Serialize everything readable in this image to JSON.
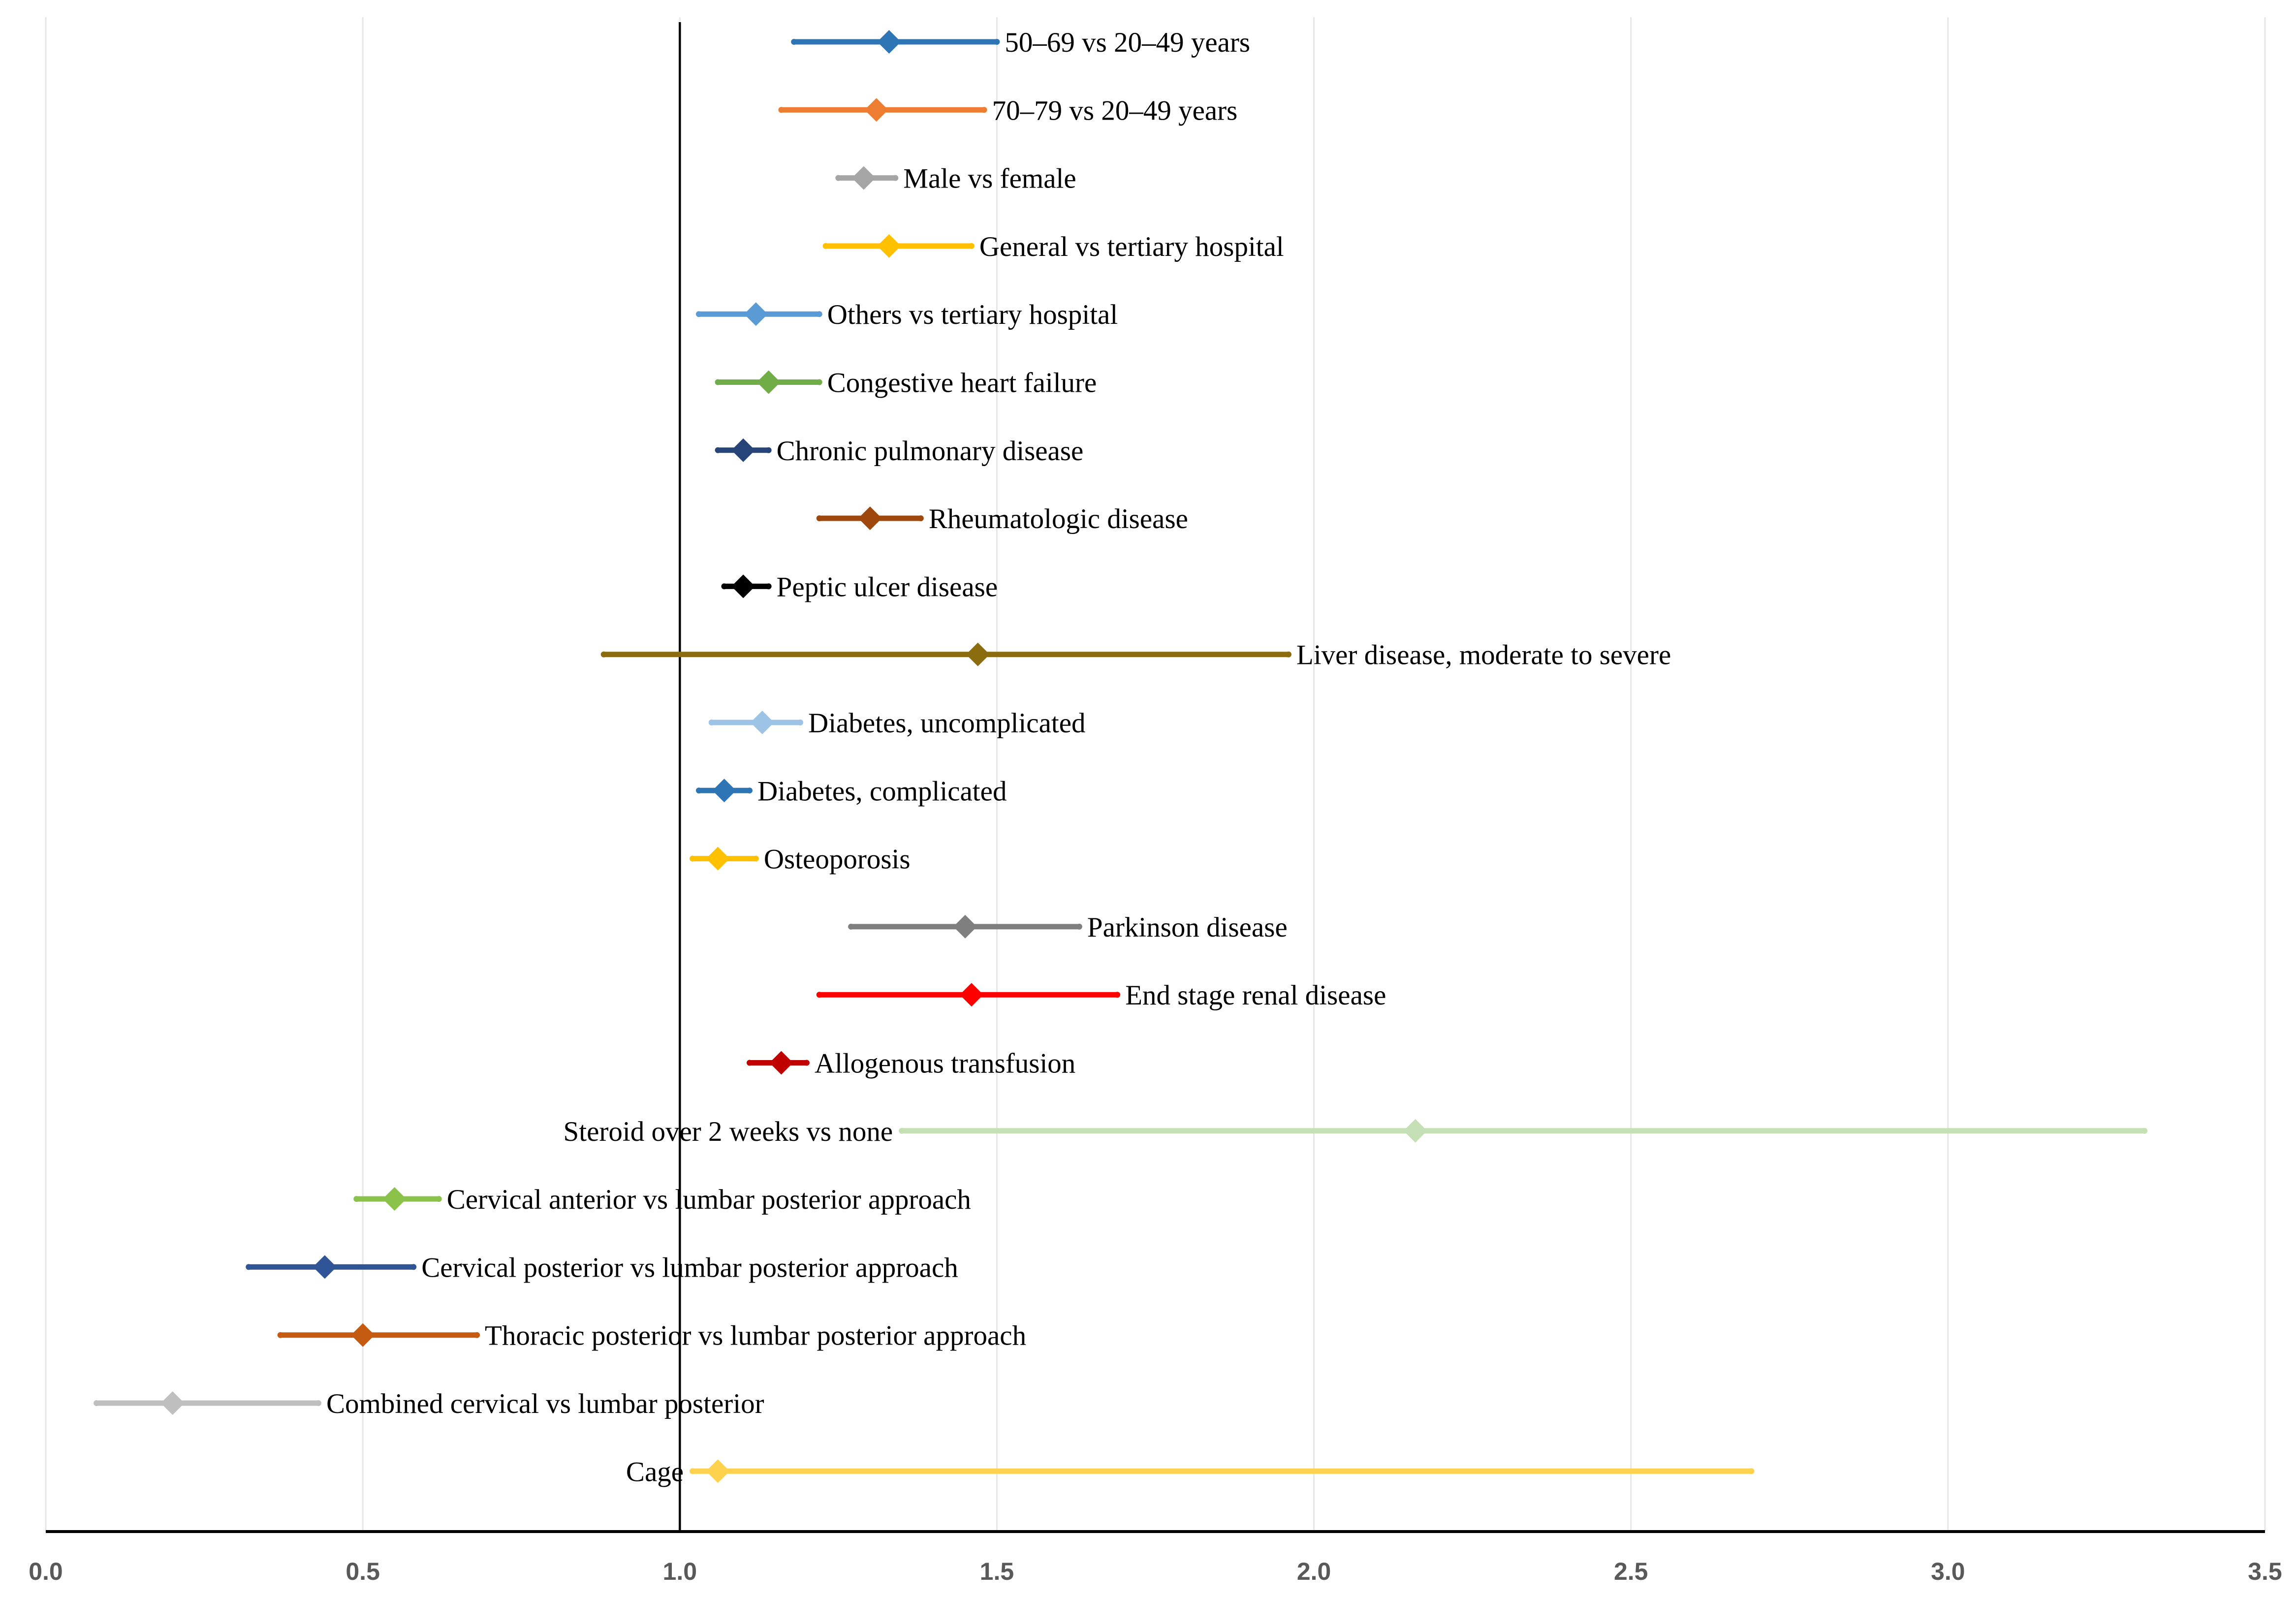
{
  "chart_data": {
    "type": "scatter",
    "title": "",
    "xlabel": "",
    "ylabel": "",
    "xlim": [
      0,
      3.5
    ],
    "x_ticks": [
      "0.0",
      "0.5",
      "1.0",
      "1.5",
      "2.0",
      "2.5",
      "3.0",
      "3.5"
    ],
    "x_tick_values": [
      0,
      0.5,
      1.0,
      1.5,
      2.0,
      2.5,
      3.0,
      3.5
    ],
    "reference_line": 1.0,
    "grid": true,
    "series": [
      {
        "name": "50–69 vs 20–49 years",
        "estimate": 1.33,
        "lower": 1.18,
        "upper": 1.5,
        "color": "#2E75B6",
        "label_side": "right"
      },
      {
        "name": "70–79 vs 20–49 years",
        "estimate": 1.31,
        "lower": 1.16,
        "upper": 1.48,
        "color": "#ED7D31",
        "label_side": "right"
      },
      {
        "name": "Male vs female",
        "estimate": 1.29,
        "lower": 1.25,
        "upper": 1.34,
        "color": "#A5A5A5",
        "label_side": "right"
      },
      {
        "name": "General vs tertiary hospital",
        "estimate": 1.33,
        "lower": 1.23,
        "upper": 1.46,
        "color": "#FFC000",
        "label_side": "right"
      },
      {
        "name": "Others vs tertiary hospital",
        "estimate": 1.12,
        "lower": 1.03,
        "upper": 1.22,
        "color": "#5B9BD5",
        "label_side": "right"
      },
      {
        "name": "Congestive heart failure",
        "estimate": 1.14,
        "lower": 1.06,
        "upper": 1.22,
        "color": "#70AD47",
        "label_side": "right"
      },
      {
        "name": "Chronic pulmonary disease",
        "estimate": 1.1,
        "lower": 1.06,
        "upper": 1.14,
        "color": "#264478",
        "label_side": "right"
      },
      {
        "name": "Rheumatologic disease",
        "estimate": 1.3,
        "lower": 1.22,
        "upper": 1.38,
        "color": "#9E480E",
        "label_side": "right"
      },
      {
        "name": "Peptic ulcer disease",
        "estimate": 1.1,
        "lower": 1.07,
        "upper": 1.14,
        "color": "#000000",
        "label_side": "right"
      },
      {
        "name": "Liver disease,  moderate to severe",
        "estimate": 1.47,
        "lower": 0.88,
        "upper": 1.96,
        "color": "#8B6D0F",
        "label_side": "right"
      },
      {
        "name": "Diabetes, uncomplicated",
        "estimate": 1.13,
        "lower": 1.05,
        "upper": 1.19,
        "color": "#9DC3E6",
        "label_side": "right"
      },
      {
        "name": "Diabetes, complicated",
        "estimate": 1.07,
        "lower": 1.03,
        "upper": 1.11,
        "color": "#2E75B6",
        "label_side": "right"
      },
      {
        "name": "Osteoporosis",
        "estimate": 1.06,
        "lower": 1.02,
        "upper": 1.12,
        "color": "#FFC000",
        "label_side": "right"
      },
      {
        "name": "Parkinson disease",
        "estimate": 1.45,
        "lower": 1.27,
        "upper": 1.63,
        "color": "#7F7F7F",
        "label_side": "right"
      },
      {
        "name": "End stage renal disease",
        "estimate": 1.46,
        "lower": 1.22,
        "upper": 1.69,
        "color": "#FF0000",
        "label_side": "right"
      },
      {
        "name": "Allogenous transfusion",
        "estimate": 1.16,
        "lower": 1.11,
        "upper": 1.2,
        "color": "#C00000",
        "label_side": "right"
      },
      {
        "name": "Steroid over 2 weeks vs none",
        "estimate": 2.16,
        "lower": 1.35,
        "upper": 3.31,
        "color": "#C5E0B4",
        "label_side": "left"
      },
      {
        "name": "Cervical anterior vs lumbar posterior approach",
        "estimate": 0.55,
        "lower": 0.49,
        "upper": 0.62,
        "color": "#8BC34A",
        "label_side": "right"
      },
      {
        "name": "Cervical posterior vs lumbar posterior approach",
        "estimate": 0.44,
        "lower": 0.32,
        "upper": 0.58,
        "color": "#2F5597",
        "label_side": "right"
      },
      {
        "name": "Thoracic posterior vs lumbar posterior approach",
        "estimate": 0.5,
        "lower": 0.37,
        "upper": 0.68,
        "color": "#C55A11",
        "label_side": "right"
      },
      {
        "name": "Combined cervical vs lumbar posterior",
        "estimate": 0.2,
        "lower": 0.08,
        "upper": 0.43,
        "color": "#BFBFBF",
        "label_side": "right"
      },
      {
        "name": "Cage",
        "estimate": 1.06,
        "lower": 1.02,
        "upper": 2.69,
        "color": "#FFD24D",
        "label_side": "left"
      }
    ]
  }
}
